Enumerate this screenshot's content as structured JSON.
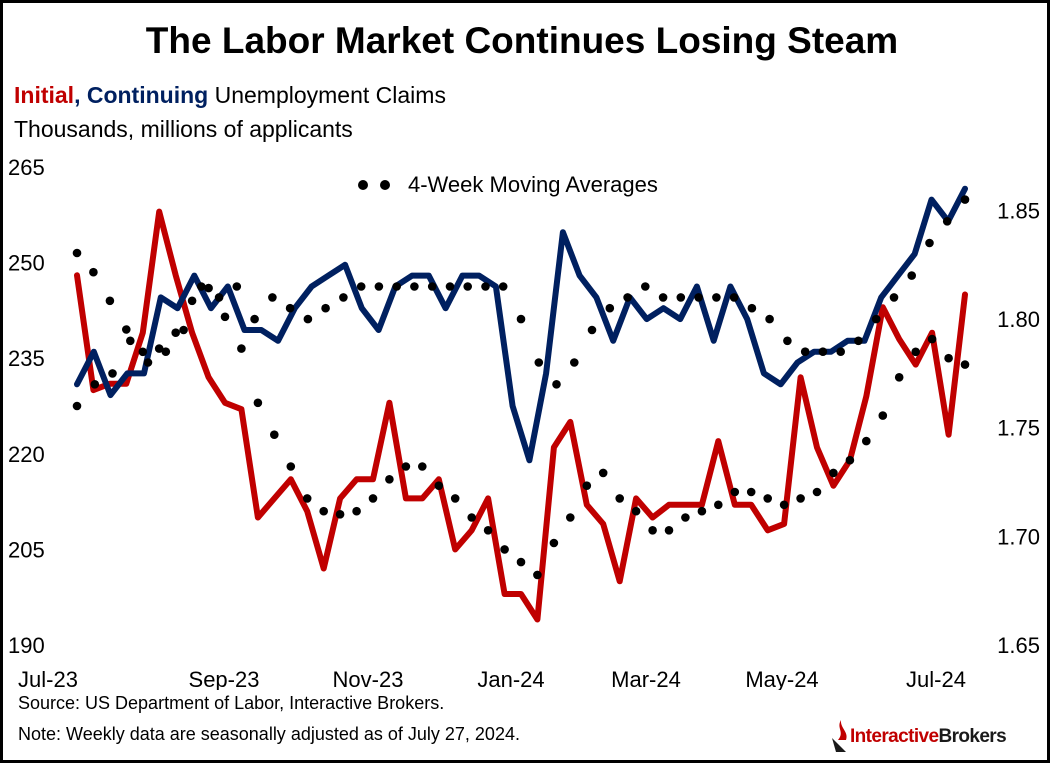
{
  "header": {
    "title": "The Labor Market Continues Losing Steam",
    "subtitle_initial": "Initial",
    "subtitle_sep": ", ",
    "subtitle_continuing": "Continuing",
    "subtitle_rest": " Unemployment Claims",
    "units": "Thousands, millions of applicants"
  },
  "footer": {
    "source": "Source: US Department of Labor, Interactive Brokers.",
    "note": "Note: Weekly data are seasonally adjusted as of July 27, 2024.",
    "logo_part1": "Interactive",
    "logo_part2": "Brokers"
  },
  "colors": {
    "initial": "#c00000",
    "continuing": "#002060",
    "average": "#000000"
  },
  "chart_data": {
    "type": "line",
    "x_ticks": [
      "Jul-23",
      "Sep-23",
      "Nov-23",
      "Jan-24",
      "Mar-24",
      "May-24",
      "Jul-24"
    ],
    "left_axis": {
      "ticks": [
        190,
        205,
        220,
        235,
        250,
        265
      ],
      "range": [
        190,
        265
      ]
    },
    "right_axis": {
      "ticks": [
        1.65,
        1.7,
        1.75,
        1.8,
        1.85
      ],
      "range": [
        1.65,
        1.87
      ]
    },
    "legend": {
      "label": "4-Week Moving Averages",
      "position": "top-center"
    },
    "series": [
      {
        "axis": "left",
        "style": "solid",
        "values": [
          248,
          230,
          231,
          231,
          239,
          258,
          248,
          239,
          232,
          228,
          227,
          210,
          213,
          216,
          211,
          202,
          213,
          216,
          216,
          228,
          213,
          213,
          216,
          205,
          208,
          213,
          198,
          198,
          194,
          221,
          225,
          212,
          209,
          200,
          213,
          210,
          212,
          212,
          212,
          222,
          212,
          212,
          208,
          209,
          232,
          221,
          215,
          219,
          229,
          243,
          238,
          234,
          239,
          223,
          245
        ]
      },
      {
        "axis": "right",
        "style": "solid",
        "values": [
          1.77,
          1.785,
          1.765,
          1.775,
          1.775,
          1.81,
          1.805,
          1.82,
          1.805,
          1.815,
          1.795,
          1.795,
          1.79,
          1.805,
          1.815,
          1.82,
          1.825,
          1.805,
          1.795,
          1.815,
          1.82,
          1.82,
          1.805,
          1.82,
          1.82,
          1.815,
          1.76,
          1.735,
          1.775,
          1.84,
          1.82,
          1.81,
          1.79,
          1.81,
          1.8,
          1.805,
          1.8,
          1.815,
          1.79,
          1.815,
          1.8,
          1.775,
          1.77,
          1.78,
          1.785,
          1.785,
          1.79,
          1.79,
          1.81,
          1.82,
          1.83,
          1.855,
          1.845,
          1.86
        ]
      },
      {
        "axis": "left",
        "style": "dotted",
        "values": [
          251.5,
          248.5,
          244,
          239.5,
          236,
          236.5,
          239,
          244,
          246,
          241.5,
          236.5,
          228,
          223,
          218,
          213,
          211,
          210.5,
          211,
          213,
          216,
          218,
          218,
          215,
          213,
          210,
          208,
          205,
          203,
          201,
          206,
          210,
          215,
          217,
          213,
          211,
          208,
          208,
          210,
          211,
          212,
          214,
          214,
          213,
          212,
          213,
          214,
          217,
          219,
          222,
          226,
          232,
          236,
          238,
          235,
          234
        ]
      },
      {
        "axis": "right",
        "style": "dotted",
        "values": [
          1.76,
          1.77,
          1.775,
          1.79,
          1.78,
          1.785,
          1.795,
          1.815,
          1.81,
          1.815,
          1.8,
          1.81,
          1.805,
          1.8,
          1.805,
          1.81,
          1.815,
          1.815,
          1.815,
          1.815,
          1.815,
          1.815,
          1.815,
          1.815,
          1.815,
          1.8,
          1.78,
          1.77,
          1.78,
          1.795,
          1.805,
          1.81,
          1.815,
          1.81,
          1.81,
          1.81,
          1.81,
          1.81,
          1.805,
          1.8,
          1.79,
          1.785,
          1.785,
          1.785,
          1.79,
          1.8,
          1.81,
          1.82,
          1.835,
          1.845,
          1.855
        ]
      }
    ]
  }
}
